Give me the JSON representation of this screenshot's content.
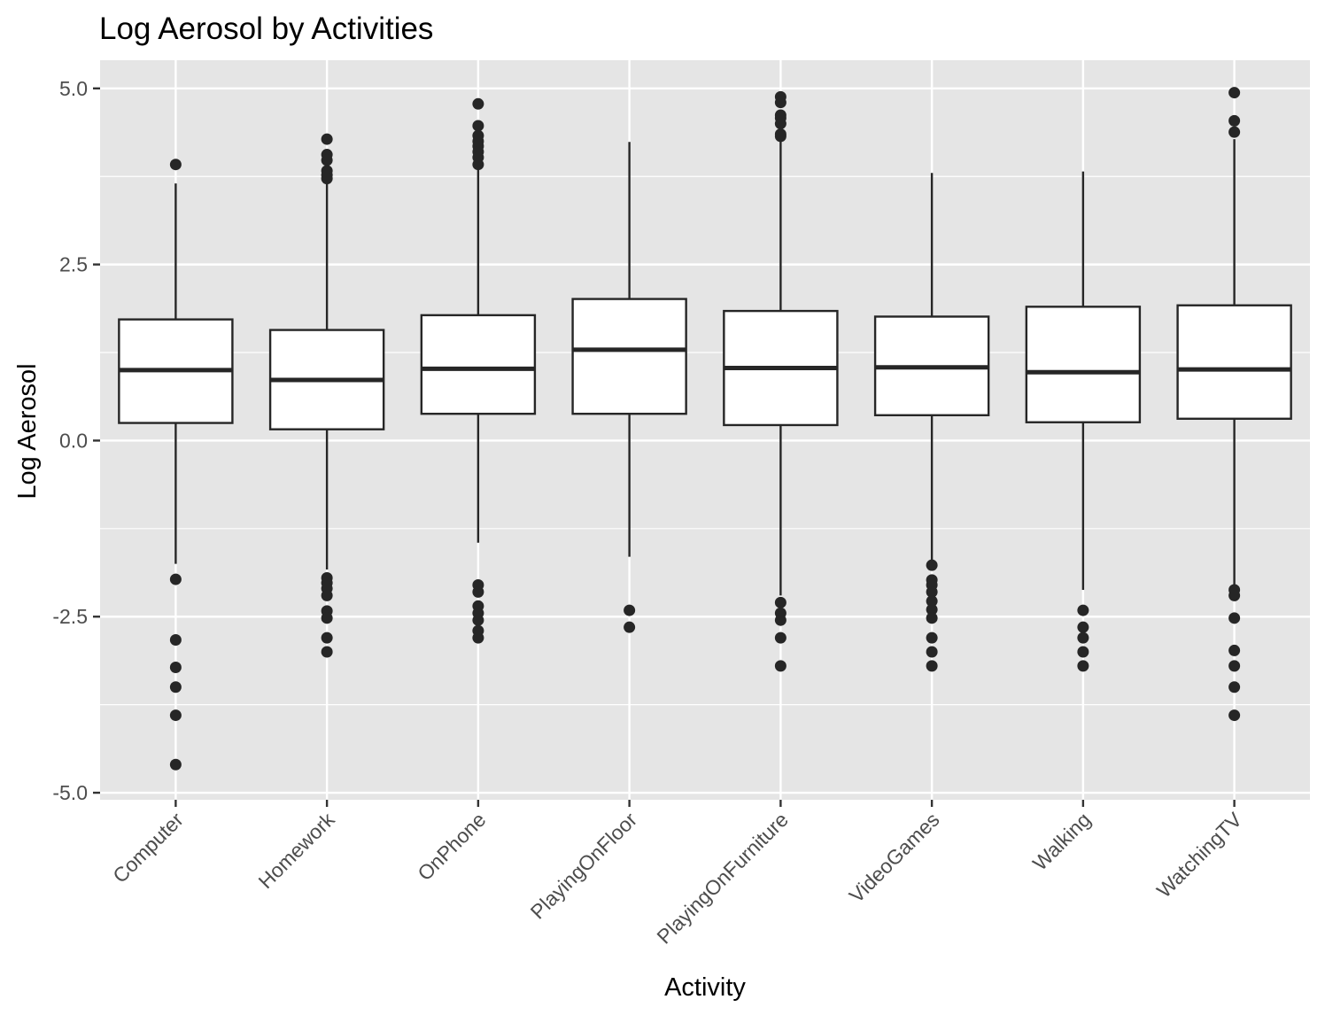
{
  "chart_data": {
    "type": "boxplot",
    "title": "Log Aerosol by Activities",
    "xlabel": "Activity",
    "ylabel": "Log Aerosol",
    "ylim": [
      -5.1,
      5.4
    ],
    "yticks": [
      -5.0,
      -2.5,
      0.0,
      2.5,
      5.0
    ],
    "ytick_labels": [
      "-5.0",
      "-2.5",
      "0.0",
      "2.5",
      "5.0"
    ],
    "grid": true,
    "legend": "none",
    "colors": {
      "panel": "#e5e5e5",
      "grid": "#ffffff",
      "box_fill": "#ffffff",
      "box_stroke": "#262626",
      "point": "#262626"
    },
    "categories": [
      "Computer",
      "Homework",
      "OnPhone",
      "PlayingOnFloor",
      "PlayingOnFurniture",
      "VideoGames",
      "Walking",
      "WatchingTV"
    ],
    "boxes": [
      {
        "category": "Computer",
        "whisker_low": -1.75,
        "q1": 0.25,
        "median": 1.0,
        "q3": 1.72,
        "whisker_high": 3.65,
        "outliers": [
          3.92,
          -1.97,
          -2.83,
          -3.22,
          -3.5,
          -3.9,
          -4.6
        ]
      },
      {
        "category": "Homework",
        "whisker_low": -1.83,
        "q1": 0.16,
        "median": 0.86,
        "q3": 1.57,
        "whisker_high": 3.68,
        "outliers": [
          4.28,
          4.06,
          3.98,
          3.83,
          3.77,
          3.72,
          -1.95,
          -2.02,
          -2.1,
          -2.2,
          -2.42,
          -2.52,
          -2.8,
          -3.0
        ]
      },
      {
        "category": "OnPhone",
        "whisker_low": -1.45,
        "q1": 0.38,
        "median": 1.02,
        "q3": 1.78,
        "whisker_high": 3.9,
        "outliers": [
          4.78,
          4.47,
          4.33,
          4.25,
          4.18,
          4.1,
          4.02,
          3.92,
          -2.05,
          -2.15,
          -2.35,
          -2.45,
          -2.55,
          -2.7,
          -2.8
        ]
      },
      {
        "category": "PlayingOnFloor",
        "whisker_low": -1.65,
        "q1": 0.38,
        "median": 1.29,
        "q3": 2.01,
        "whisker_high": 4.24,
        "outliers": [
          -2.41,
          -2.65
        ]
      },
      {
        "category": "PlayingOnFurniture",
        "whisker_low": -2.2,
        "q1": 0.22,
        "median": 1.03,
        "q3": 1.84,
        "whisker_high": 4.3,
        "outliers": [
          4.88,
          4.8,
          4.62,
          4.58,
          4.5,
          4.35,
          4.32,
          -2.3,
          -2.45,
          -2.55,
          -2.8,
          -3.2
        ]
      },
      {
        "category": "VideoGames",
        "whisker_low": -1.75,
        "q1": 0.36,
        "median": 1.04,
        "q3": 1.76,
        "whisker_high": 3.8,
        "outliers": [
          -1.77,
          -1.98,
          -2.05,
          -2.15,
          -2.28,
          -2.4,
          -2.52,
          -2.8,
          -3.0,
          -3.2
        ]
      },
      {
        "category": "Walking",
        "whisker_low": -2.12,
        "q1": 0.26,
        "median": 0.97,
        "q3": 1.9,
        "whisker_high": 3.82,
        "outliers": [
          -2.41,
          -2.65,
          -2.8,
          -3.0,
          -3.2
        ]
      },
      {
        "category": "WatchingTV",
        "whisker_low": -2.08,
        "q1": 0.31,
        "median": 1.01,
        "q3": 1.92,
        "whisker_high": 4.28,
        "outliers": [
          4.94,
          4.54,
          4.38,
          -2.12,
          -2.2,
          -2.52,
          -2.98,
          -3.2,
          -3.5,
          -3.9
        ]
      }
    ]
  }
}
